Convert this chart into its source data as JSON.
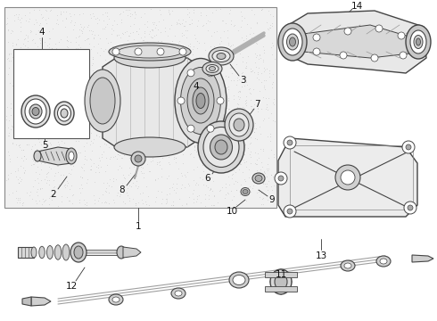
{
  "figsize": [
    4.9,
    3.6
  ],
  "dpi": 100,
  "line_color": "#444444",
  "bg_color": "#ffffff",
  "box_bg": "#f0f0f0",
  "dot_color": "#cccccc",
  "gray_fill": "#d8d8d8",
  "light_gray": "#eeeeee",
  "mid_gray": "#bbbbbb",
  "label_fs": 7.5,
  "callout_lw": 0.6
}
